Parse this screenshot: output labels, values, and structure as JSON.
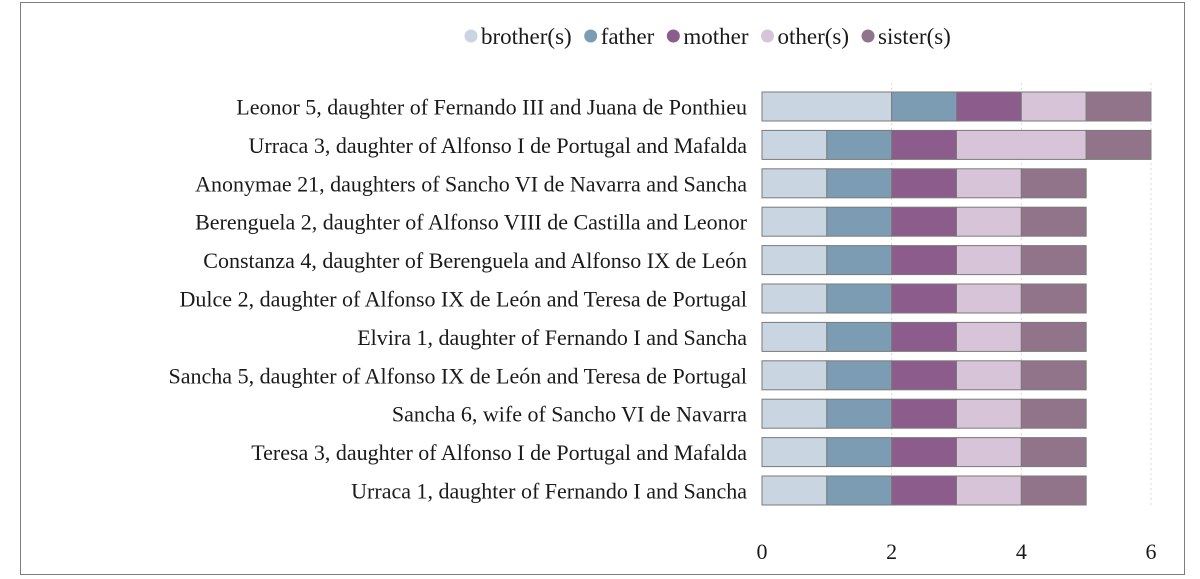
{
  "chart_data": {
    "type": "bar",
    "orientation": "horizontal",
    "stacked": true,
    "categories": [
      "Leonor 5, daughter of Fernando III and Juana de Ponthieu",
      "Urraca 3, daughter of Alfonso I de Portugal and Mafalda",
      "Anonymae 21, daughters of Sancho VI de Navarra and Sancha",
      "Berenguela 2, daughter of Alfonso VIII de Castilla and Leonor",
      "Constanza 4, daughter of Berenguela and Alfonso IX de León",
      "Dulce 2, daughter of Alfonso IX de León and Teresa de Portugal",
      "Elvira 1, daughter of Fernando I and Sancha",
      "Sancha 5, daughter of Alfonso IX de León and Teresa de Portugal",
      "Sancha 6, wife of Sancho VI de Navarra",
      "Teresa 3, daughter of Alfonso I de Portugal and Mafalda",
      "Urraca 1, daughter of Fernando I and Sancha"
    ],
    "series": [
      {
        "name": "brother(s)",
        "color": "#c9d6e1",
        "values": [
          2,
          1,
          1,
          1,
          1,
          1,
          1,
          1,
          1,
          1,
          1
        ]
      },
      {
        "name": "father",
        "color": "#7c9cb4",
        "values": [
          1,
          1,
          1,
          1,
          1,
          1,
          1,
          1,
          1,
          1,
          1
        ]
      },
      {
        "name": "mother",
        "color": "#8b5c8c",
        "values": [
          1,
          1,
          1,
          1,
          1,
          1,
          1,
          1,
          1,
          1,
          1
        ]
      },
      {
        "name": "other(s)",
        "color": "#d8c4d8",
        "values": [
          1,
          2,
          1,
          1,
          1,
          1,
          1,
          1,
          1,
          1,
          1
        ]
      },
      {
        "name": "sister(s)",
        "color": "#917489",
        "values": [
          1,
          1,
          1,
          1,
          1,
          1,
          1,
          1,
          1,
          1,
          1
        ]
      }
    ],
    "x_ticks": [
      0,
      2,
      4,
      6
    ],
    "xlim": [
      0,
      6
    ],
    "title": "",
    "xlabel": "",
    "ylabel": "",
    "legend_position": "top",
    "grid": "vertical dotted"
  }
}
